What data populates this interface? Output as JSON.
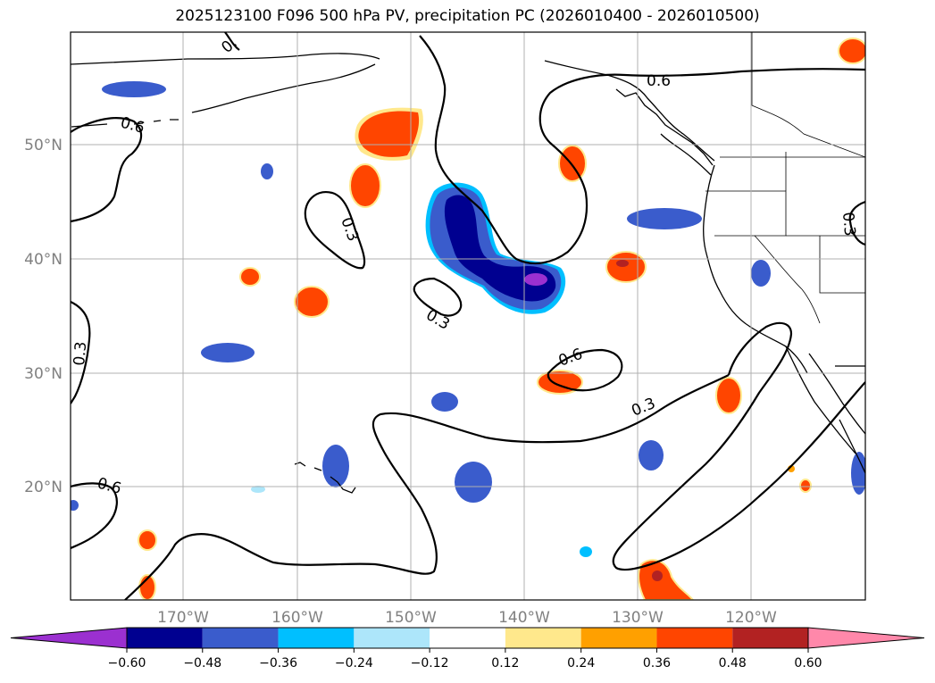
{
  "title": "2025123100 F096 500 hPa PV, precipitation PC (2026010400 - 2026010500)",
  "map": {
    "lon_ticks": [
      "170°W",
      "160°W",
      "150°W",
      "140°W",
      "130°W",
      "120°W"
    ],
    "lat_ticks": [
      "50°N",
      "40°N",
      "30°N",
      "20°N"
    ],
    "contour_labels": [
      "0.6",
      "0.6",
      "0.3",
      "0.3",
      "0.3",
      "0.6",
      "0.3",
      "0.6",
      "0.3",
      "0."
    ]
  },
  "colorbar": {
    "tick_labels": [
      "−0.60",
      "−0.48",
      "−0.36",
      "−0.24",
      "−0.12",
      "0.12",
      "0.24",
      "0.36",
      "0.48",
      "0.60"
    ],
    "colors": [
      "#9b30d0",
      "#000090",
      "#3a5ccc",
      "#00bfff",
      "#ade6fa",
      "#ffffff",
      "#ffe88c",
      "#ffa000",
      "#ff4500",
      "#b22222",
      "#ff88aa"
    ]
  }
}
